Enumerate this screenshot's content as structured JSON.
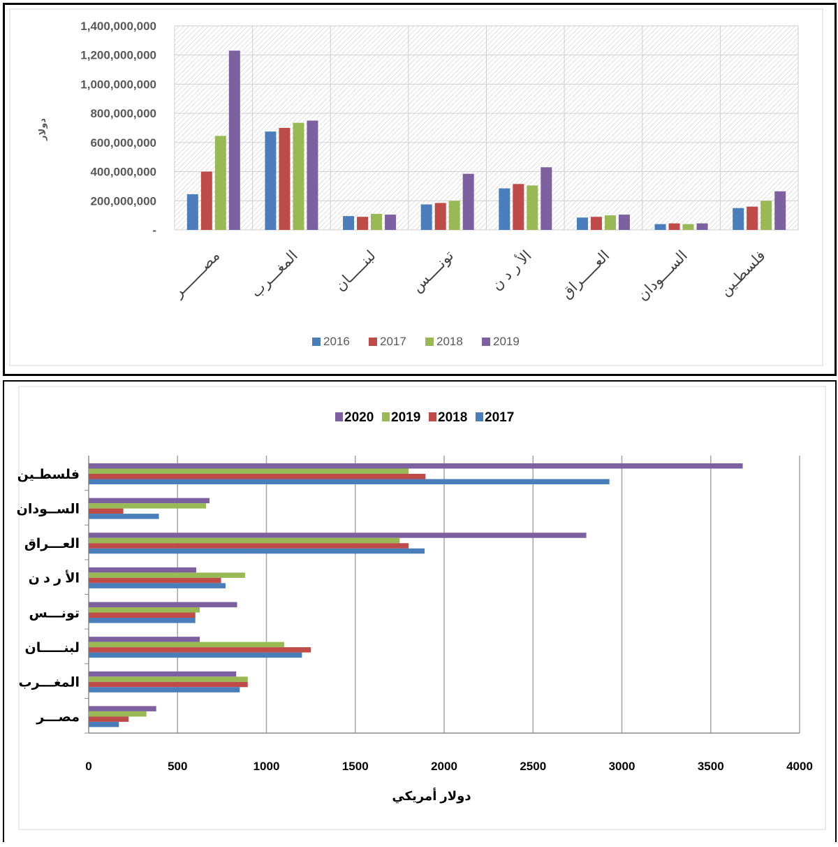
{
  "chart_data": [
    {
      "type": "bar",
      "orientation": "vertical",
      "ylabel": "دولار",
      "ylim": [
        0,
        1400000000
      ],
      "y_ticks": [
        "-",
        "200,000,000",
        "400,000,000",
        "600,000,000",
        "800,000,000",
        "1,000,000,000",
        "1,200,000,000",
        "1,400,000,000"
      ],
      "grid": true,
      "legend_position": "bottom",
      "categories": [
        "مصـــــــر",
        "المغـــرب",
        "لبنـــــان",
        "تونــــس",
        "الأ ر د ن",
        "العـــــراق",
        "الســـودان",
        "فلسطـين"
      ],
      "series": [
        {
          "name": "2016",
          "color": "#4a7ebb",
          "values": [
            245000000,
            675000000,
            95000000,
            175000000,
            285000000,
            85000000,
            40000000,
            150000000
          ]
        },
        {
          "name": "2017",
          "color": "#be4b48",
          "values": [
            400000000,
            700000000,
            90000000,
            185000000,
            315000000,
            90000000,
            45000000,
            160000000
          ]
        },
        {
          "name": "2018",
          "color": "#98b954",
          "values": [
            645000000,
            735000000,
            110000000,
            200000000,
            305000000,
            100000000,
            40000000,
            200000000
          ]
        },
        {
          "name": "2019",
          "color": "#7d60a0",
          "values": [
            1230000000,
            750000000,
            105000000,
            385000000,
            430000000,
            105000000,
            45000000,
            265000000
          ]
        }
      ]
    },
    {
      "type": "bar",
      "orientation": "horizontal",
      "xlabel": "دولار أمريكي",
      "xlim": [
        0,
        4000
      ],
      "x_ticks": [
        "0",
        "500",
        "1000",
        "1500",
        "2000",
        "2500",
        "3000",
        "3500",
        "4000"
      ],
      "grid": true,
      "legend_position": "top",
      "categories": [
        "مصـــر",
        "المغـــرب",
        "لبنـــــان",
        "تونـــس",
        "الأ ر د ن",
        "العـــراق",
        "الســودان",
        "فلسطـين"
      ],
      "series": [
        {
          "name": "2017",
          "color": "#4a7ebb",
          "values": [
            170,
            850,
            1200,
            600,
            770,
            1890,
            395,
            2930
          ]
        },
        {
          "name": "2018",
          "color": "#be4b48",
          "values": [
            225,
            895,
            1250,
            600,
            745,
            1800,
            195,
            1895
          ]
        },
        {
          "name": "2019",
          "color": "#98b954",
          "values": [
            325,
            895,
            1100,
            625,
            880,
            1750,
            660,
            1800
          ]
        },
        {
          "name": "2020",
          "color": "#7d60a0",
          "values": [
            380,
            830,
            625,
            835,
            605,
            2800,
            680,
            3680
          ]
        }
      ],
      "legend_order": [
        "2020",
        "2019",
        "2018",
        "2017"
      ]
    }
  ]
}
